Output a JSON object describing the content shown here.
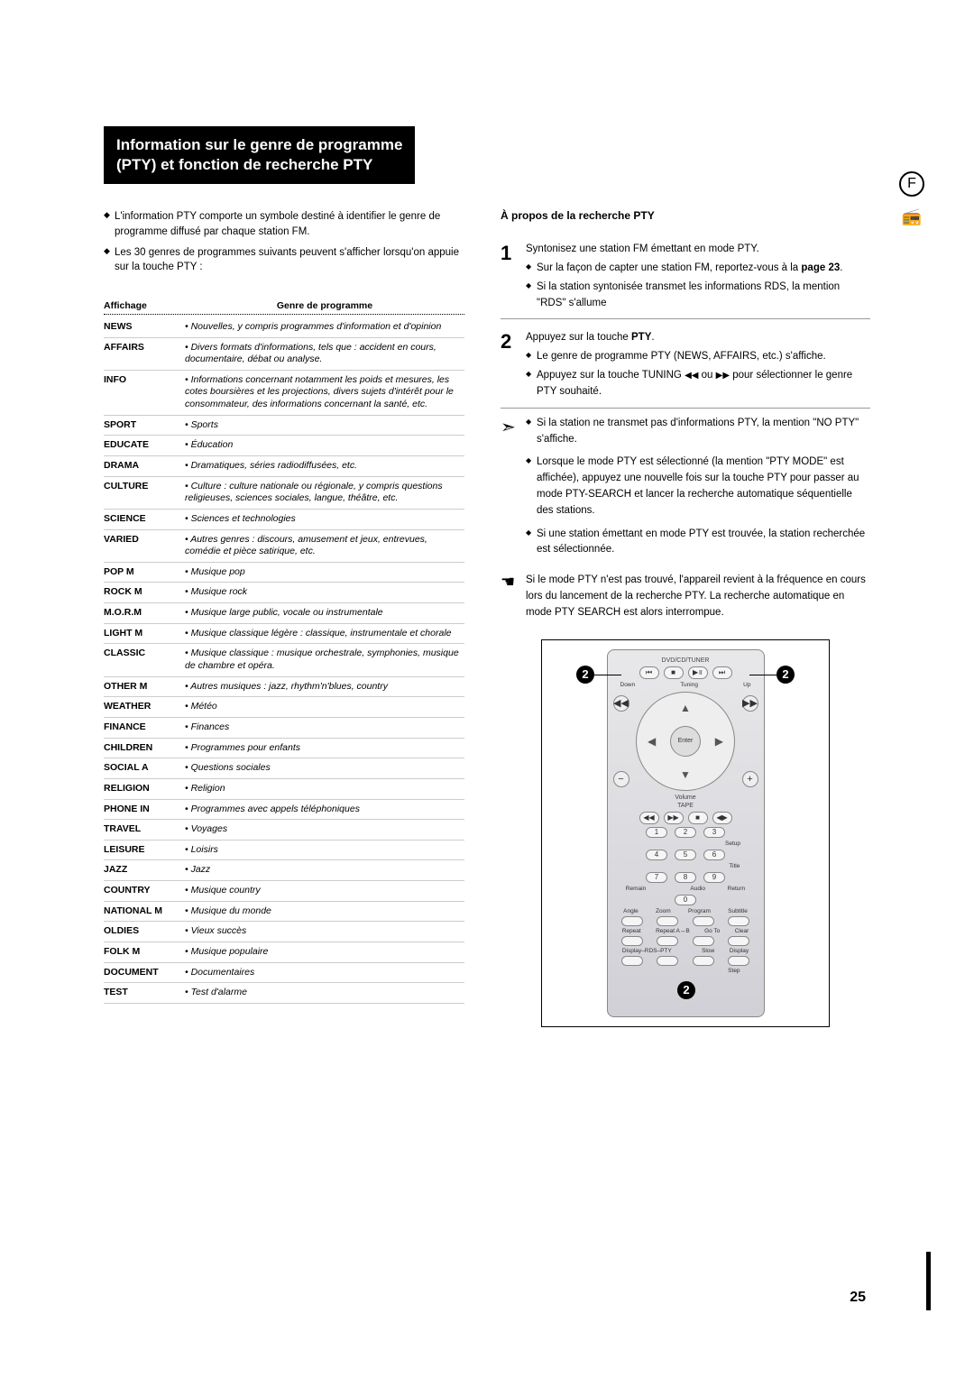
{
  "title_line1": "Information sur le genre de programme",
  "title_line2": "(PTY) et fonction de recherche PTY",
  "intro": [
    "L'information PTY comporte un symbole destiné à identifier le genre de programme diffusé par chaque station FM.",
    "Les 30 genres de programmes suivants peuvent s'afficher lorsqu'on appuie sur la touche PTY :"
  ],
  "table_headers": {
    "col1": "Affichage",
    "col2": "Genre de programme"
  },
  "table_rows": [
    {
      "label": "NEWS",
      "desc": "• Nouvelles, y compris programmes d'information et d'opinion"
    },
    {
      "label": "AFFAIRS",
      "desc": "• Divers formats d'informations, tels que : accident en cours, documentaire, débat ou analyse."
    },
    {
      "label": "INFO",
      "desc": "• Informations concernant notamment les poids et mesures, les cotes boursières et les projections, divers sujets d'intérêt pour le consommateur, des informations concernant la santé, etc."
    },
    {
      "label": "SPORT",
      "desc": "• Sports"
    },
    {
      "label": "EDUCATE",
      "desc": "• Éducation"
    },
    {
      "label": "DRAMA",
      "desc": "• Dramatiques, séries radiodiffusées, etc."
    },
    {
      "label": "CULTURE",
      "desc": "• Culture : culture nationale ou régionale, y compris questions religieuses, sciences sociales, langue, théâtre, etc."
    },
    {
      "label": "SCIENCE",
      "desc": "• Sciences et technologies"
    },
    {
      "label": "VARIED",
      "desc": "• Autres genres : discours, amusement et jeux, entrevues, comédie et pièce satirique, etc."
    },
    {
      "label": "POP M",
      "desc": "• Musique pop"
    },
    {
      "label": "ROCK M",
      "desc": "• Musique rock"
    },
    {
      "label": "M.O.R.M",
      "desc": "• Musique large public, vocale ou instrumentale"
    },
    {
      "label": "LIGHT M",
      "desc": "• Musique classique légère : classique, instrumentale et chorale"
    },
    {
      "label": "CLASSIC",
      "desc": "• Musique classique : musique orchestrale, symphonies, musique de chambre et opéra."
    },
    {
      "label": "OTHER M",
      "desc": "• Autres musiques : jazz, rhythm'n'blues, country"
    },
    {
      "label": "WEATHER",
      "desc": "• Météo"
    },
    {
      "label": "FINANCE",
      "desc": "• Finances"
    },
    {
      "label": "CHILDREN",
      "desc": "• Programmes pour enfants"
    },
    {
      "label": "SOCIAL  A",
      "desc": "• Questions sociales"
    },
    {
      "label": "RELIGION",
      "desc": "• Religion"
    },
    {
      "label": "PHONE IN",
      "desc": "• Programmes avec appels téléphoniques"
    },
    {
      "label": "TRAVEL",
      "desc": "• Voyages"
    },
    {
      "label": "LEISURE",
      "desc": "• Loisirs"
    },
    {
      "label": "JAZZ",
      "desc": "• Jazz"
    },
    {
      "label": "COUNTRY",
      "desc": "• Musique country"
    },
    {
      "label": "NATIONAL M",
      "desc": "• Musique du monde"
    },
    {
      "label": "OLDIES",
      "desc": "• Vieux succès"
    },
    {
      "label": "FOLK M",
      "desc": "• Musique populaire"
    },
    {
      "label": "DOCUMENT",
      "desc": "• Documentaires"
    },
    {
      "label": "TEST",
      "desc": "• Test d'alarme"
    }
  ],
  "right_heading": "À propos de la recherche PTY",
  "step1": {
    "num": "1",
    "main": "Syntonisez une station FM émettant en mode PTY.",
    "subs": [
      "Sur la façon de capter une station FM, reportez-vous à la page 23.",
      "Si la station syntonisée transmet les informations RDS, la mention \"RDS\" s'allume"
    ]
  },
  "step2": {
    "num": "2",
    "main": "Appuyez sur la touche PTY.",
    "subs": [
      "Le genre de programme PTY (NEWS, AFFAIRS, etc.) s'affiche.",
      "Appuyez sur la touche TUNING ◀◀ ou ▶▶ pour sélectionner le genre PTY souhaité."
    ]
  },
  "notes": [
    "Si la station ne transmet pas d'informations PTY, la mention \"NO PTY\" s'affiche.",
    "Lorsque le mode PTY est sélectionné (la mention \"PTY MODE\" est affichée), appuyez une nouvelle fois sur la touche PTY pour passer au mode PTY-SEARCH et lancer la recherche automatique séquentielle des stations.",
    "Si une station émettant en mode PTY est trouvée, la station recherchée est sélectionnée."
  ],
  "pointer_text": "Si le mode PTY n'est pas trouvé, l'appareil revient à la fréquence en cours lors du lancement de la recherche PTY. La recherche automatique en mode PTY SEARCH est alors interrompue.",
  "remote": {
    "top_label": "DVD/CD/TUNER",
    "tuning_left": "Down",
    "tuning_mid": "Tuning",
    "tuning_right": "Up",
    "enter": "Enter",
    "volume": "Volume",
    "tape": "TAPE",
    "numbers": [
      "1",
      "2",
      "3",
      "4",
      "5",
      "6",
      "7",
      "8",
      "9",
      "0"
    ],
    "row_labels_1": [
      "",
      "",
      "",
      "Setup"
    ],
    "row_labels_2": [
      "",
      "",
      "",
      "Title"
    ],
    "row_labels_3": [
      "Remain",
      "",
      "Audio",
      "Return"
    ],
    "row_labels_4": [
      "Angle",
      "Zoom",
      "Program",
      "Subtitle"
    ],
    "row_labels_5": [
      "Repeat",
      "Repeat A↔B",
      "Go To",
      "Clear"
    ],
    "row_labels_6": [
      "Display–RDS–PTY",
      "",
      "Slow",
      "Display"
    ],
    "row_labels_7": [
      "",
      "",
      "",
      "Step"
    ]
  },
  "callout_num": "2",
  "page_letter": "F",
  "page_number": "25",
  "colors": {
    "title_bg": "#000000",
    "title_fg": "#ffffff",
    "remote_bg_top": "#e8e8ea",
    "remote_bg_bottom": "#d0d0d6",
    "border": "#888888"
  }
}
